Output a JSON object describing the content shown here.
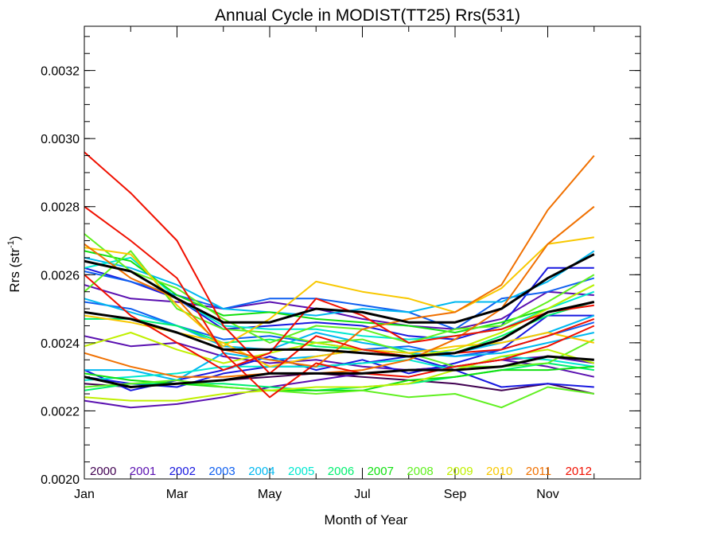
{
  "chart_data": {
    "type": "line",
    "title": "Annual Cycle in MODIST(TT25) Rrs(531)",
    "xlabel": "Month of Year",
    "ylabel_main": "Rrs (str",
    "ylabel_sup": "-1",
    "ylabel_close": ")",
    "xlim": [
      1,
      13
    ],
    "ylim": [
      0.002,
      0.00333
    ],
    "x_ticks": [
      {
        "value": 1,
        "label": "Jan"
      },
      {
        "value": 3,
        "label": "Mar"
      },
      {
        "value": 5,
        "label": "May"
      },
      {
        "value": 7,
        "label": "Jul"
      },
      {
        "value": 9,
        "label": "Sep"
      },
      {
        "value": 11,
        "label": "Nov"
      }
    ],
    "y_ticks": [
      {
        "value": 0.002,
        "label": "0.0020"
      },
      {
        "value": 0.0022,
        "label": "0.0022"
      },
      {
        "value": 0.0024,
        "label": "0.0024"
      },
      {
        "value": 0.0026,
        "label": "0.0026"
      },
      {
        "value": 0.0028,
        "label": "0.0028"
      },
      {
        "value": 0.003,
        "label": "0.0030"
      },
      {
        "value": 0.0032,
        "label": "0.0032"
      }
    ],
    "x": [
      1,
      2,
      3,
      4,
      5,
      6,
      7,
      8,
      9,
      10,
      11,
      12
    ],
    "legend": [
      {
        "label": "2000",
        "color": "#400050"
      },
      {
        "label": "2001",
        "color": "#5a10b0"
      },
      {
        "label": "2002",
        "color": "#1818e0"
      },
      {
        "label": "2003",
        "color": "#1060f0"
      },
      {
        "label": "2004",
        "color": "#00b8f0"
      },
      {
        "label": "2005",
        "color": "#00e8d0"
      },
      {
        "label": "2006",
        "color": "#00f070"
      },
      {
        "label": "2007",
        "color": "#10e010"
      },
      {
        "label": "2008",
        "color": "#60f020"
      },
      {
        "label": "2009",
        "color": "#c0f000"
      },
      {
        "label": "2010",
        "color": "#f8c800"
      },
      {
        "label": "2011",
        "color": "#f07000"
      },
      {
        "label": "2012",
        "color": "#f01000"
      }
    ],
    "series": [
      {
        "color": "#400050",
        "values": [
          0.00228,
          0.00227,
          0.00228,
          0.00229,
          0.0023,
          0.00231,
          0.0023,
          0.00229,
          0.00228,
          0.00226,
          0.00228,
          0.00225
        ]
      },
      {
        "color": "#5a10b0",
        "values": [
          0.00242,
          0.00239,
          0.0024,
          0.00236,
          0.00234,
          0.00235,
          0.00233,
          0.00232,
          0.00233,
          0.00235,
          0.00236,
          0.00234
        ]
      },
      {
        "color": "#5a10b0",
        "values": [
          0.00223,
          0.00221,
          0.00222,
          0.00224,
          0.00227,
          0.00229,
          0.00231,
          0.00232,
          0.00233,
          0.00235,
          0.00233,
          0.0023
        ]
      },
      {
        "color": "#5a10b0",
        "values": [
          0.00257,
          0.00253,
          0.00252,
          0.0025,
          0.00252,
          0.0025,
          0.00247,
          0.00245,
          0.00244,
          0.00247,
          0.00255,
          0.00254
        ]
      },
      {
        "color": "#1818e0",
        "values": [
          0.00262,
          0.00258,
          0.00253,
          0.00244,
          0.00245,
          0.00246,
          0.00245,
          0.00242,
          0.00241,
          0.00245,
          0.00262,
          0.00262
        ]
      },
      {
        "color": "#1818e0",
        "values": [
          0.00232,
          0.00226,
          0.00229,
          0.00232,
          0.00236,
          0.00232,
          0.00235,
          0.00231,
          0.00234,
          0.00238,
          0.00248,
          0.00248
        ]
      },
      {
        "color": "#1818e0",
        "values": [
          0.0023,
          0.00228,
          0.00227,
          0.00231,
          0.00233,
          0.00233,
          0.00234,
          0.00236,
          0.00232,
          0.00227,
          0.00228,
          0.00227
        ]
      },
      {
        "color": "#1060f0",
        "values": [
          0.00261,
          0.00258,
          0.00254,
          0.0025,
          0.00253,
          0.00253,
          0.00251,
          0.00249,
          0.00244,
          0.00253,
          0.00255,
          0.00259
        ]
      },
      {
        "color": "#1060f0",
        "values": [
          0.00252,
          0.0025,
          0.00245,
          0.00241,
          0.00242,
          0.0024,
          0.00238,
          0.00239,
          0.00236,
          0.00238,
          0.00242,
          0.00246
        ]
      },
      {
        "color": "#00b8f0",
        "values": [
          0.00265,
          0.00262,
          0.00257,
          0.0025,
          0.00249,
          0.00248,
          0.0025,
          0.00249,
          0.00252,
          0.00252,
          0.00258,
          0.00267
        ]
      },
      {
        "color": "#00b8f0",
        "values": [
          0.00253,
          0.00249,
          0.00245,
          0.00239,
          0.00238,
          0.00243,
          0.0024,
          0.00238,
          0.00237,
          0.0024,
          0.00243,
          0.00248
        ]
      },
      {
        "color": "#00b8f0",
        "values": [
          0.00232,
          0.00232,
          0.00229,
          0.00237,
          0.00235,
          0.00236,
          0.00238,
          0.00237,
          0.00236,
          0.00237,
          0.0024,
          0.00243
        ]
      },
      {
        "color": "#00e8d0",
        "values": [
          0.00262,
          0.00265,
          0.00253,
          0.00245,
          0.00244,
          0.00244,
          0.00242,
          0.00241,
          0.00242,
          0.00244,
          0.0025,
          0.00255
        ]
      },
      {
        "color": "#00e8d0",
        "values": [
          0.00229,
          0.0023,
          0.00231,
          0.00233,
          0.00233,
          0.00233,
          0.00234,
          0.00235,
          0.00232,
          0.00236,
          0.00235,
          0.00233
        ]
      },
      {
        "color": "#00f070",
        "values": [
          0.00247,
          0.00247,
          0.00245,
          0.0024,
          0.00241,
          0.00239,
          0.00238,
          0.00236,
          0.00237,
          0.00242,
          0.00248,
          0.00252
        ]
      },
      {
        "color": "#00f070",
        "values": [
          0.00226,
          0.00228,
          0.00228,
          0.00228,
          0.00227,
          0.00226,
          0.00227,
          0.00228,
          0.0023,
          0.00232,
          0.00234,
          0.00232
        ]
      },
      {
        "color": "#10e010",
        "values": [
          0.00267,
          0.00264,
          0.00254,
          0.00248,
          0.00249,
          0.00247,
          0.00246,
          0.00245,
          0.00243,
          0.00246,
          0.0025,
          0.00257
        ]
      },
      {
        "color": "#10e010",
        "values": [
          0.00231,
          0.00229,
          0.00228,
          0.00227,
          0.00226,
          0.00226,
          0.00226,
          0.00229,
          0.0023,
          0.00232,
          0.00232,
          0.00233
        ]
      },
      {
        "color": "#60f020",
        "values": [
          0.00272,
          0.00261,
          0.00256,
          0.00247,
          0.0024,
          0.00245,
          0.00244,
          0.0024,
          0.00244,
          0.00245,
          0.00252,
          0.0026
        ]
      },
      {
        "color": "#60f020",
        "values": [
          0.00227,
          0.00228,
          0.00229,
          0.00227,
          0.00226,
          0.00225,
          0.00226,
          0.00224,
          0.00225,
          0.00221,
          0.00227,
          0.00225
        ]
      },
      {
        "color": "#60f020",
        "values": [
          0.00255,
          0.00267,
          0.0025,
          0.00244,
          0.00243,
          0.0024,
          0.00241,
          0.00237,
          0.00233,
          0.00233,
          0.00234,
          0.00241
        ]
      },
      {
        "color": "#c0f000",
        "values": [
          0.00224,
          0.00223,
          0.00223,
          0.00225,
          0.00226,
          0.00227,
          0.00227,
          0.00228,
          0.00232,
          0.00236,
          0.00238,
          0.00234
        ]
      },
      {
        "color": "#c0f000",
        "values": [
          0.00239,
          0.00243,
          0.00238,
          0.00234,
          0.00237,
          0.0024,
          0.00238,
          0.00236,
          0.00238,
          0.00243,
          0.0025,
          0.00257
        ]
      },
      {
        "color": "#f8c800",
        "values": [
          0.00268,
          0.00266,
          0.00251,
          0.00239,
          0.00247,
          0.00258,
          0.00255,
          0.00253,
          0.00249,
          0.00256,
          0.00269,
          0.00271
        ]
      },
      {
        "color": "#f8c800",
        "values": [
          0.00248,
          0.00246,
          0.00243,
          0.0024,
          0.00233,
          0.00236,
          0.00238,
          0.00237,
          0.00239,
          0.0024,
          0.00243,
          0.0024
        ]
      },
      {
        "color": "#f07000",
        "values": [
          0.00269,
          0.00259,
          0.00253,
          0.00238,
          0.00235,
          0.00233,
          0.00244,
          0.00247,
          0.00249,
          0.00257,
          0.00279,
          0.00295
        ]
      },
      {
        "color": "#f07000",
        "values": [
          0.00237,
          0.00233,
          0.0023,
          0.0023,
          0.00231,
          0.00231,
          0.00232,
          0.00235,
          0.00241,
          0.0025,
          0.00269,
          0.0028
        ]
      },
      {
        "color": "#f01000",
        "values": [
          0.00296,
          0.00284,
          0.0027,
          0.00245,
          0.00231,
          0.00242,
          0.00238,
          0.00236,
          0.00237,
          0.00238,
          0.00242,
          0.00247
        ]
      },
      {
        "color": "#f01000",
        "values": [
          0.0028,
          0.0027,
          0.00259,
          0.00237,
          0.00224,
          0.00234,
          0.00231,
          0.0023,
          0.00233,
          0.00235,
          0.00239,
          0.00245
        ]
      },
      {
        "color": "#f01000",
        "values": [
          0.0026,
          0.00248,
          0.0024,
          0.00232,
          0.00237,
          0.00253,
          0.00248,
          0.0024,
          0.00242,
          0.00244,
          0.00249,
          0.00251
        ]
      },
      {
        "color": "#000000",
        "width": 3,
        "values": [
          0.00264,
          0.00261,
          0.00253,
          0.00246,
          0.00246,
          0.0025,
          0.00249,
          0.00246,
          0.00246,
          0.0025,
          0.00259,
          0.00266
        ]
      },
      {
        "color": "#000000",
        "width": 3,
        "values": [
          0.00249,
          0.00247,
          0.00243,
          0.00238,
          0.00238,
          0.00238,
          0.00237,
          0.00236,
          0.00237,
          0.00241,
          0.00249,
          0.00252
        ]
      },
      {
        "color": "#000000",
        "width": 3,
        "values": [
          0.0023,
          0.00227,
          0.00228,
          0.00229,
          0.00231,
          0.00231,
          0.00231,
          0.00232,
          0.00232,
          0.00233,
          0.00236,
          0.00235
        ]
      }
    ]
  }
}
